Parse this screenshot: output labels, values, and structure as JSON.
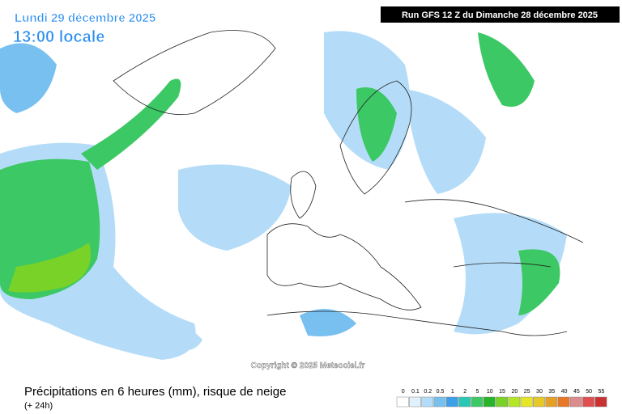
{
  "header": {
    "date": "Lundi 29 décembre 2025",
    "time": "13:00 locale",
    "run": "Run GFS 12 Z du Dimanche 28 décembre 2025"
  },
  "copyright": "Copyright © 2025 Meteociel.fr",
  "footer": {
    "title": "Précipitations en 6 heures (mm), risque de neige",
    "lead": "(+ 24h)"
  },
  "legend": {
    "labels": [
      0,
      0.1,
      0.2,
      0.5,
      1,
      2,
      5,
      10,
      15,
      20,
      25,
      30,
      35,
      40,
      45,
      50,
      55
    ],
    "colors": [
      "#ffffff",
      "#e0f0fc",
      "#b4dcf8",
      "#78c0f0",
      "#3ca0e8",
      "#28c8b4",
      "#3cc864",
      "#28b428",
      "#78d228",
      "#b4e628",
      "#e6e628",
      "#e6c828",
      "#e6a028",
      "#e67828",
      "#dc8c8c",
      "#e05050",
      "#c83232"
    ]
  }
}
